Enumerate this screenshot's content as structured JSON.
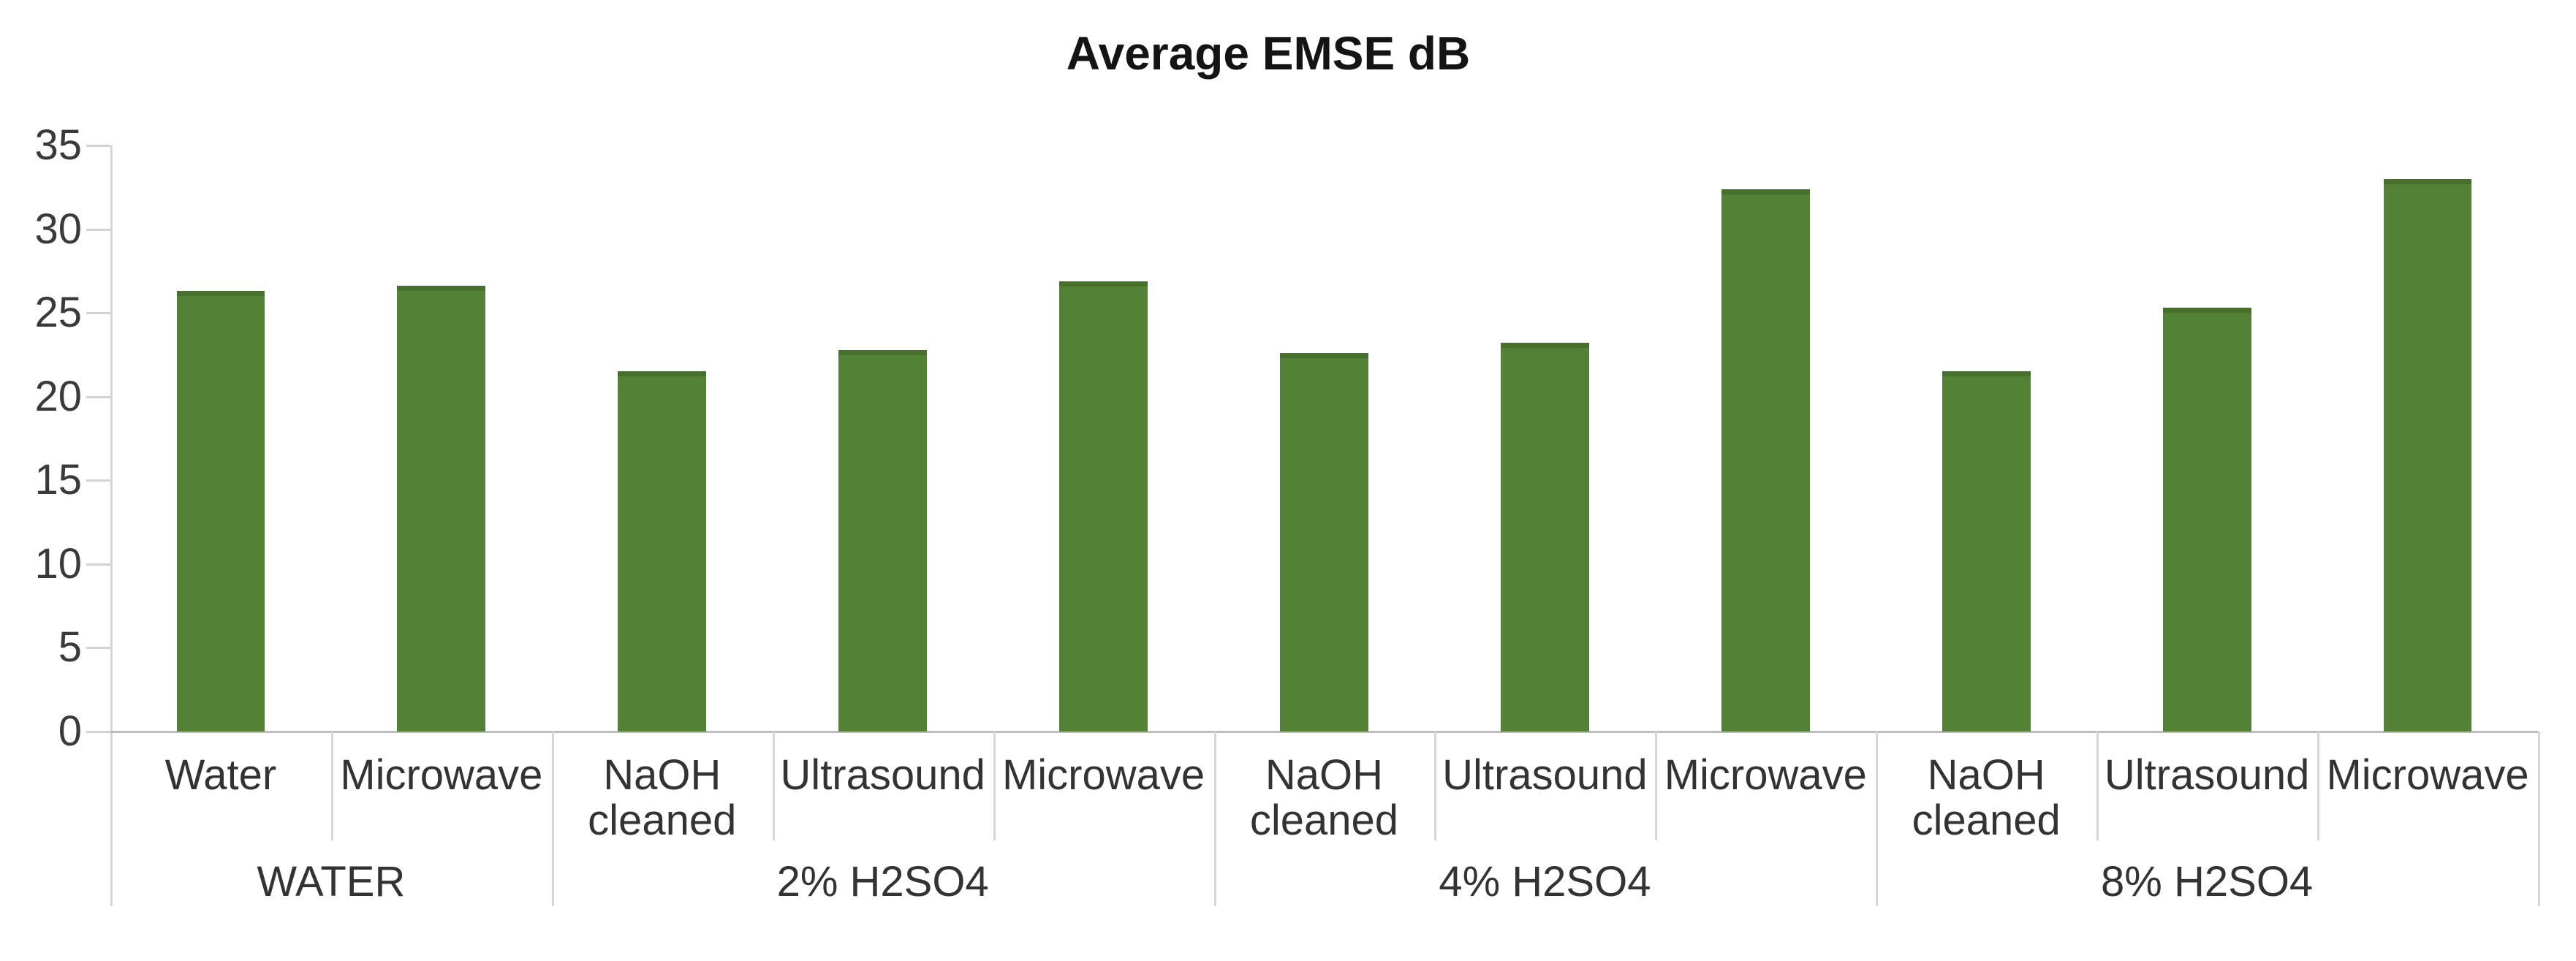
{
  "chart_data": {
    "type": "bar",
    "title": "Average EMSE dB",
    "ylabel": "",
    "xlabel": "",
    "ylim": [
      0,
      35
    ],
    "y_ticks": [
      0,
      5,
      10,
      15,
      20,
      25,
      30,
      35
    ],
    "grid": "off",
    "legend": "none",
    "groups": [
      {
        "label": "WATER",
        "categories": [
          "Water",
          "Microwave"
        ],
        "values": [
          26.3,
          26.6
        ]
      },
      {
        "label": "2% H2SO4",
        "categories": [
          "NaOH cleaned",
          "Ultrasound",
          "Microwave"
        ],
        "values": [
          21.5,
          22.8,
          26.9
        ]
      },
      {
        "label": "4% H2SO4",
        "categories": [
          "NaOH cleaned",
          "Ultrasound",
          "Microwave"
        ],
        "values": [
          22.6,
          23.2,
          32.4
        ]
      },
      {
        "label": "8% H2SO4",
        "categories": [
          "NaOH cleaned",
          "Ultrasound",
          "Microwave"
        ],
        "values": [
          21.5,
          25.3,
          33.0
        ]
      }
    ],
    "colors": {
      "bar_fill": "#538135",
      "bar_top_edge": "#47702c",
      "axis_line": "#d6d6d6",
      "baseline": "#bdbdbd",
      "tick_label": "#3a3a3a",
      "category_label": "#333333",
      "title": "#141414",
      "background": "#ffffff"
    }
  }
}
